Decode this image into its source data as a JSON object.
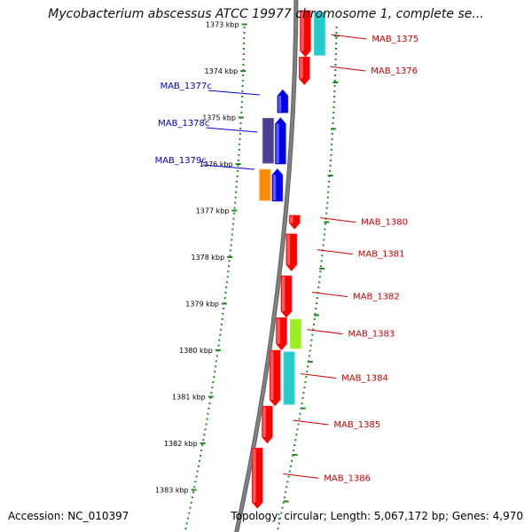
{
  "title": "Mycobacterium abscessus ATCC 19977 chromosome 1, complete se...",
  "footer": {
    "accession": "Accession: NC_010397",
    "summary": "Topology: circular; Length: 5,067,172 bp; Genes: 4,970"
  },
  "colors": {
    "backbone": "#808080",
    "ticks": "#228b22",
    "plus_label": "#cc0000",
    "minus_label": "#0000cc"
  },
  "ticks": [
    {
      "label": "1373 kbp",
      "kbp": 1373
    },
    {
      "label": "1374 kbp",
      "kbp": 1374
    },
    {
      "label": "1375 kbp",
      "kbp": 1375
    },
    {
      "label": "1376 kbp",
      "kbp": 1376
    },
    {
      "label": "1377 kbp",
      "kbp": 1377
    },
    {
      "label": "1378 kbp",
      "kbp": 1378
    },
    {
      "label": "1379 kbp",
      "kbp": 1379
    },
    {
      "label": "1380 kbp",
      "kbp": 1380
    },
    {
      "label": "1381 kbp",
      "kbp": 1381
    },
    {
      "label": "1382 kbp",
      "kbp": 1382
    },
    {
      "label": "1383 kbp",
      "kbp": 1383
    }
  ],
  "genes": [
    {
      "name": "MAB_1375",
      "strand": "+",
      "start": 1372.7,
      "end": 1373.7,
      "color": "#ff0000",
      "sub_color": "#22cccc"
    },
    {
      "name": "MAB_1376",
      "strand": "+",
      "start": 1373.7,
      "end": 1374.3,
      "color": "#ff0000"
    },
    {
      "name": "MAB_1377c",
      "strand": "-",
      "start": 1374.4,
      "end": 1374.9,
      "color": "#0000ee"
    },
    {
      "name": "MAB_1378c",
      "strand": "-",
      "start": 1375.0,
      "end": 1376.0,
      "color": "#0000ee",
      "sub_color": "#4a3f8f"
    },
    {
      "name": "MAB_1379c",
      "strand": "-",
      "start": 1376.1,
      "end": 1376.8,
      "color": "#0000ee",
      "sub_color": "#ff8c00"
    },
    {
      "name": "MAB_1380",
      "strand": "+",
      "start": 1377.1,
      "end": 1377.4,
      "color": "#ff0000"
    },
    {
      "name": "MAB_1381",
      "strand": "+",
      "start": 1377.5,
      "end": 1378.3,
      "color": "#ff0000"
    },
    {
      "name": "MAB_1382",
      "strand": "+",
      "start": 1378.4,
      "end": 1379.3,
      "color": "#ff0000"
    },
    {
      "name": "MAB_1383",
      "strand": "+",
      "start": 1379.3,
      "end": 1380.0,
      "color": "#ff0000",
      "sub_color": "#99ee22"
    },
    {
      "name": "MAB_1384",
      "strand": "+",
      "start": 1380.0,
      "end": 1381.2,
      "color": "#ff0000",
      "sub_color": "#22cccc"
    },
    {
      "name": "MAB_1385",
      "strand": "+",
      "start": 1381.2,
      "end": 1382.0,
      "color": "#ff0000"
    },
    {
      "name": "MAB_1386",
      "strand": "+",
      "start": 1382.1,
      "end": 1383.4,
      "color": "#ff0000"
    }
  ]
}
